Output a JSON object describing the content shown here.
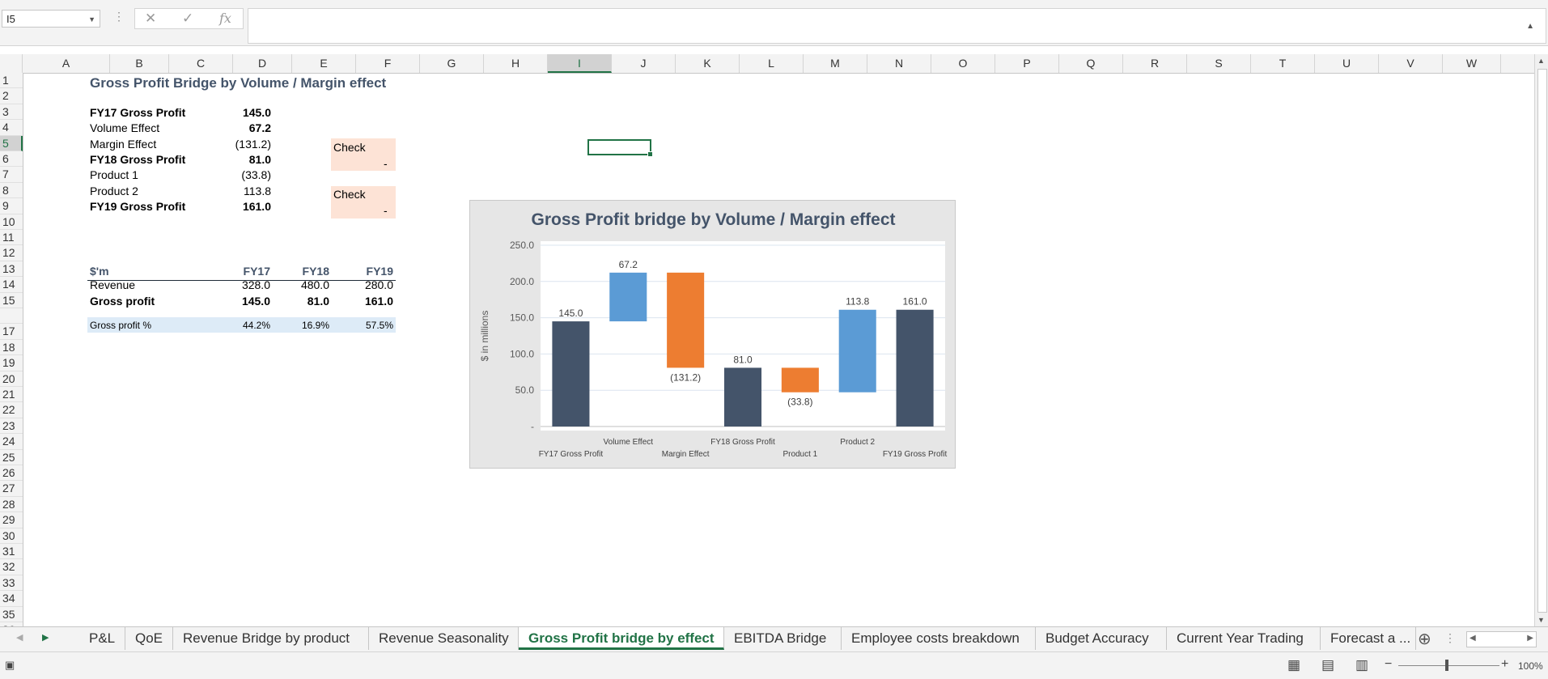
{
  "formula_bar": {
    "name_box": "I5",
    "formula": ""
  },
  "columns": [
    "A",
    "B",
    "C",
    "D",
    "E",
    "F",
    "G",
    "H",
    "I",
    "J",
    "K",
    "L",
    "M",
    "N",
    "O",
    "P",
    "Q",
    "R",
    "S",
    "T",
    "U",
    "V",
    "W"
  ],
  "selected_column": "I",
  "rows": [
    "1",
    "2",
    "3",
    "4",
    "5",
    "6",
    "7",
    "8",
    "9",
    "10",
    "11",
    "12",
    "13",
    "14",
    "15",
    "",
    "17",
    "18",
    "19",
    "20",
    "21",
    "22",
    "23",
    "24",
    "25",
    "26",
    "27",
    "28",
    "29",
    "30",
    "31",
    "32",
    "33",
    "34",
    "35",
    "36"
  ],
  "selected_row": "5",
  "sheet": {
    "title": "Gross Profit Bridge by Volume / Margin effect",
    "bridge": [
      {
        "label": "FY17 Gross Profit",
        "value": "145.0",
        "bold": true
      },
      {
        "label": "Volume Effect",
        "value": "67.2",
        "bold": false,
        "bold_value": true
      },
      {
        "label": "Margin Effect",
        "value": "(131.2)",
        "bold": false
      },
      {
        "label": "FY18 Gross Profit",
        "value": "81.0",
        "bold": true
      },
      {
        "label": "Product 1",
        "value": "(33.8)",
        "bold": false
      },
      {
        "label": "Product 2",
        "value": "113.8",
        "bold": false
      },
      {
        "label": "FY19 Gross Profit",
        "value": "161.0",
        "bold": true
      }
    ],
    "check1_label": "Check",
    "check1_value": "-",
    "check2_label": "Check",
    "check2_value": "-",
    "table_header": {
      "unit": "$'m",
      "cols": [
        "FY17",
        "FY18",
        "FY19"
      ]
    },
    "table_rows": [
      {
        "label": "Revenue",
        "values": [
          "328.0",
          "480.0",
          "280.0"
        ],
        "bold": false
      },
      {
        "label": "Gross profit",
        "values": [
          "145.0",
          "81.0",
          "161.0"
        ],
        "bold": true
      }
    ],
    "margin_row": {
      "label": "Gross profit %",
      "values": [
        "44.2%",
        "16.9%",
        "57.5%"
      ]
    }
  },
  "chart_data": {
    "type": "bar",
    "subtype": "waterfall",
    "title": "Gross Profit bridge by Volume / Margin effect",
    "ylabel": "$ in millions",
    "ylim": [
      0,
      250
    ],
    "yticks": [
      "-",
      "50.0",
      "100.0",
      "150.0",
      "200.0",
      "250.0"
    ],
    "grid": true,
    "categories": [
      "FY17 Gross Profit",
      "Volume Effect",
      "Margin Effect",
      "FY18 Gross Profit",
      "Product 1",
      "Product 2",
      "FY19 Gross Profit"
    ],
    "bars": [
      {
        "base": 0,
        "top": 145.0,
        "label": "145.0",
        "kind": "total"
      },
      {
        "base": 145.0,
        "top": 212.2,
        "label": "67.2",
        "kind": "increase"
      },
      {
        "base": 81.0,
        "top": 212.2,
        "label": "(131.2)",
        "kind": "decrease"
      },
      {
        "base": 0,
        "top": 81.0,
        "label": "81.0",
        "kind": "total"
      },
      {
        "base": 47.2,
        "top": 81.0,
        "label": "(33.8)",
        "kind": "decrease"
      },
      {
        "base": 47.2,
        "top": 161.0,
        "label": "113.8",
        "kind": "increase"
      },
      {
        "base": 0,
        "top": 161.0,
        "label": "161.0",
        "kind": "total"
      }
    ],
    "colors": {
      "total": "#44546a",
      "increase": "#5b9bd5",
      "decrease": "#ed7d31"
    }
  },
  "tabs": [
    "P&L",
    "QoE",
    "Revenue Bridge by product",
    "Revenue Seasonality",
    "Gross Profit bridge by effect",
    "EBITDA Bridge",
    "Employee costs breakdown",
    "Budget Accuracy",
    "Current Year Trading",
    "Forecast a ..."
  ],
  "active_tab": "Gross Profit bridge by effect",
  "status": {
    "zoom": "100%"
  }
}
